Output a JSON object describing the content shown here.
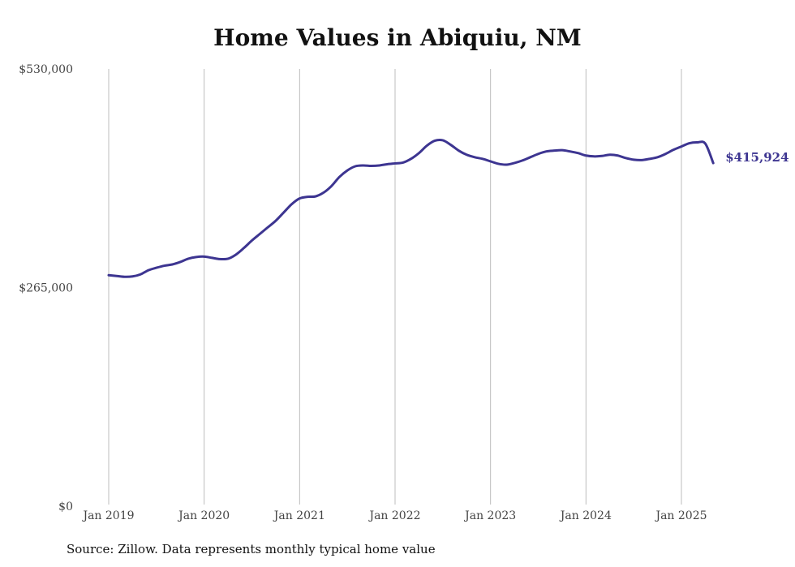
{
  "chart_data": {
    "type": "line",
    "title": "Home Values in Abiquiu, NM",
    "xlabel": "",
    "ylabel": "",
    "ylim": [
      0,
      530000
    ],
    "y_ticks": [
      "$0",
      "$265,000",
      "$530,000"
    ],
    "y_tick_values": [
      0,
      265000,
      530000
    ],
    "x_ticks": [
      "Jan 2019",
      "Jan 2020",
      "Jan 2021",
      "Jan 2022",
      "Jan 2023",
      "Jan 2024",
      "Jan 2025"
    ],
    "x_tick_values": [
      "2019-01",
      "2020-01",
      "2021-01",
      "2022-01",
      "2023-01",
      "2024-01",
      "2025-01"
    ],
    "grid": "vertical",
    "end_label": "$415,924",
    "series": [
      {
        "color": "#3d3591",
        "points": [
          [
            "2019-01",
            280000
          ],
          [
            "2019-02",
            279000
          ],
          [
            "2019-03",
            278000
          ],
          [
            "2019-04",
            278500
          ],
          [
            "2019-05",
            281000
          ],
          [
            "2019-06",
            286000
          ],
          [
            "2019-07",
            289000
          ],
          [
            "2019-08",
            291500
          ],
          [
            "2019-09",
            293000
          ],
          [
            "2019-10",
            296000
          ],
          [
            "2019-11",
            300000
          ],
          [
            "2019-12",
            302000
          ],
          [
            "2020-01",
            302500
          ],
          [
            "2020-02",
            301000
          ],
          [
            "2020-03",
            299500
          ],
          [
            "2020-04",
            300000
          ],
          [
            "2020-05",
            305000
          ],
          [
            "2020-06",
            313000
          ],
          [
            "2020-07",
            322000
          ],
          [
            "2020-08",
            330000
          ],
          [
            "2020-09",
            338000
          ],
          [
            "2020-10",
            346000
          ],
          [
            "2020-11",
            356000
          ],
          [
            "2020-12",
            366000
          ],
          [
            "2021-01",
            373000
          ],
          [
            "2021-02",
            375000
          ],
          [
            "2021-03",
            375500
          ],
          [
            "2021-04",
            380000
          ],
          [
            "2021-05",
            388000
          ],
          [
            "2021-06",
            399000
          ],
          [
            "2021-07",
            407000
          ],
          [
            "2021-08",
            412000
          ],
          [
            "2021-09",
            413000
          ],
          [
            "2021-10",
            412500
          ],
          [
            "2021-11",
            413000
          ],
          [
            "2021-12",
            414500
          ],
          [
            "2022-01",
            415500
          ],
          [
            "2022-02",
            416500
          ],
          [
            "2022-03",
            421000
          ],
          [
            "2022-04",
            428000
          ],
          [
            "2022-05",
            437000
          ],
          [
            "2022-06",
            443000
          ],
          [
            "2022-07",
            443500
          ],
          [
            "2022-08",
            438000
          ],
          [
            "2022-09",
            431000
          ],
          [
            "2022-10",
            426000
          ],
          [
            "2022-11",
            423000
          ],
          [
            "2022-12",
            421000
          ],
          [
            "2023-01",
            418000
          ],
          [
            "2023-02",
            415000
          ],
          [
            "2023-03",
            414000
          ],
          [
            "2023-04",
            416000
          ],
          [
            "2023-05",
            419000
          ],
          [
            "2023-06",
            423000
          ],
          [
            "2023-07",
            427000
          ],
          [
            "2023-08",
            430000
          ],
          [
            "2023-09",
            431000
          ],
          [
            "2023-10",
            431500
          ],
          [
            "2023-11",
            430000
          ],
          [
            "2023-12",
            428000
          ],
          [
            "2024-01",
            425000
          ],
          [
            "2024-02",
            424000
          ],
          [
            "2024-03",
            424500
          ],
          [
            "2024-04",
            426000
          ],
          [
            "2024-05",
            425000
          ],
          [
            "2024-06",
            422000
          ],
          [
            "2024-07",
            420000
          ],
          [
            "2024-08",
            419500
          ],
          [
            "2024-09",
            421000
          ],
          [
            "2024-10",
            423000
          ],
          [
            "2024-11",
            427000
          ],
          [
            "2024-12",
            432000
          ],
          [
            "2025-01",
            436000
          ],
          [
            "2025-02",
            440000
          ],
          [
            "2025-03",
            441000
          ],
          [
            "2025-04",
            439500
          ],
          [
            "2025-05",
            415924
          ]
        ]
      }
    ]
  },
  "source_note": "Source: Zillow. Data represents monthly typical home value"
}
